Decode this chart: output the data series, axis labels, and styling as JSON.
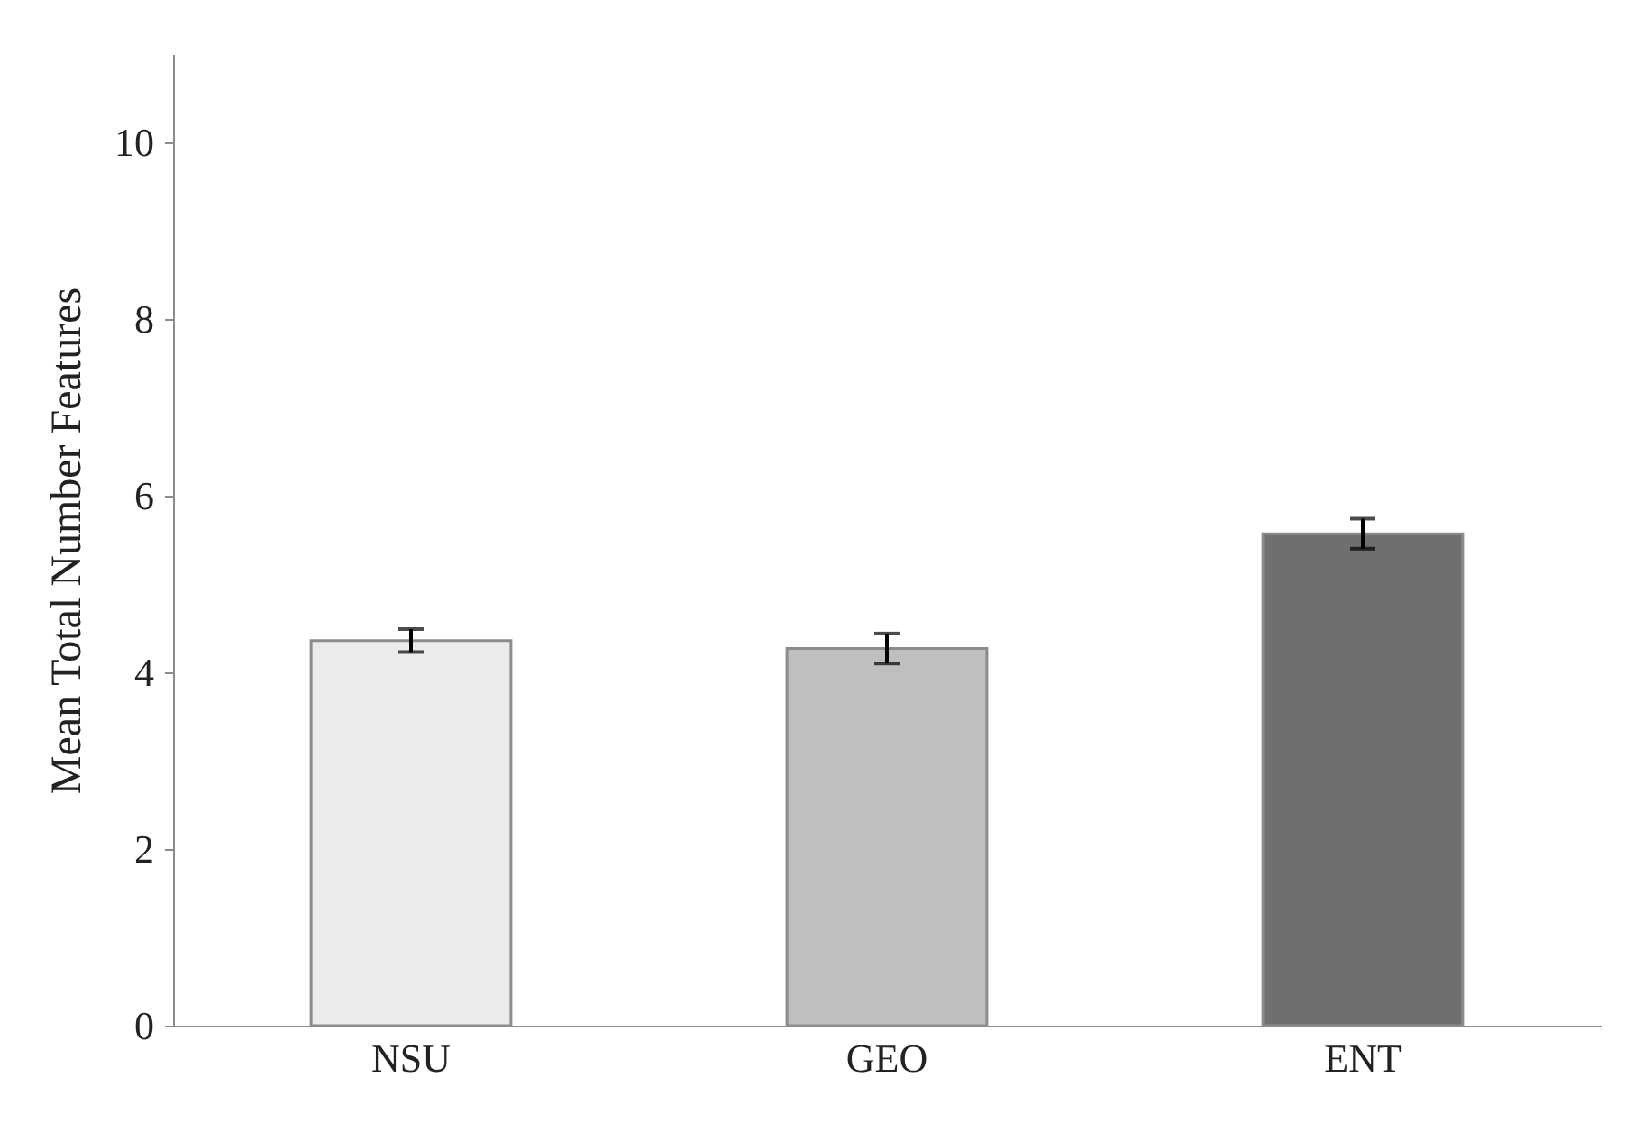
{
  "chart_data": {
    "type": "bar",
    "ylabel": "Mean Total Number Features",
    "categories": [
      "NSU",
      "GEO",
      "ENT"
    ],
    "values": [
      4.36,
      4.27,
      5.57
    ],
    "errors": [
      0.13,
      0.17,
      0.17
    ],
    "colors": [
      "#ebebeb",
      "#bfbfbf",
      "#6f6f6f"
    ],
    "ylim": [
      0,
      11
    ],
    "yticks": [
      0,
      2,
      4,
      6,
      8,
      10
    ],
    "grid": false,
    "legend": false
  }
}
